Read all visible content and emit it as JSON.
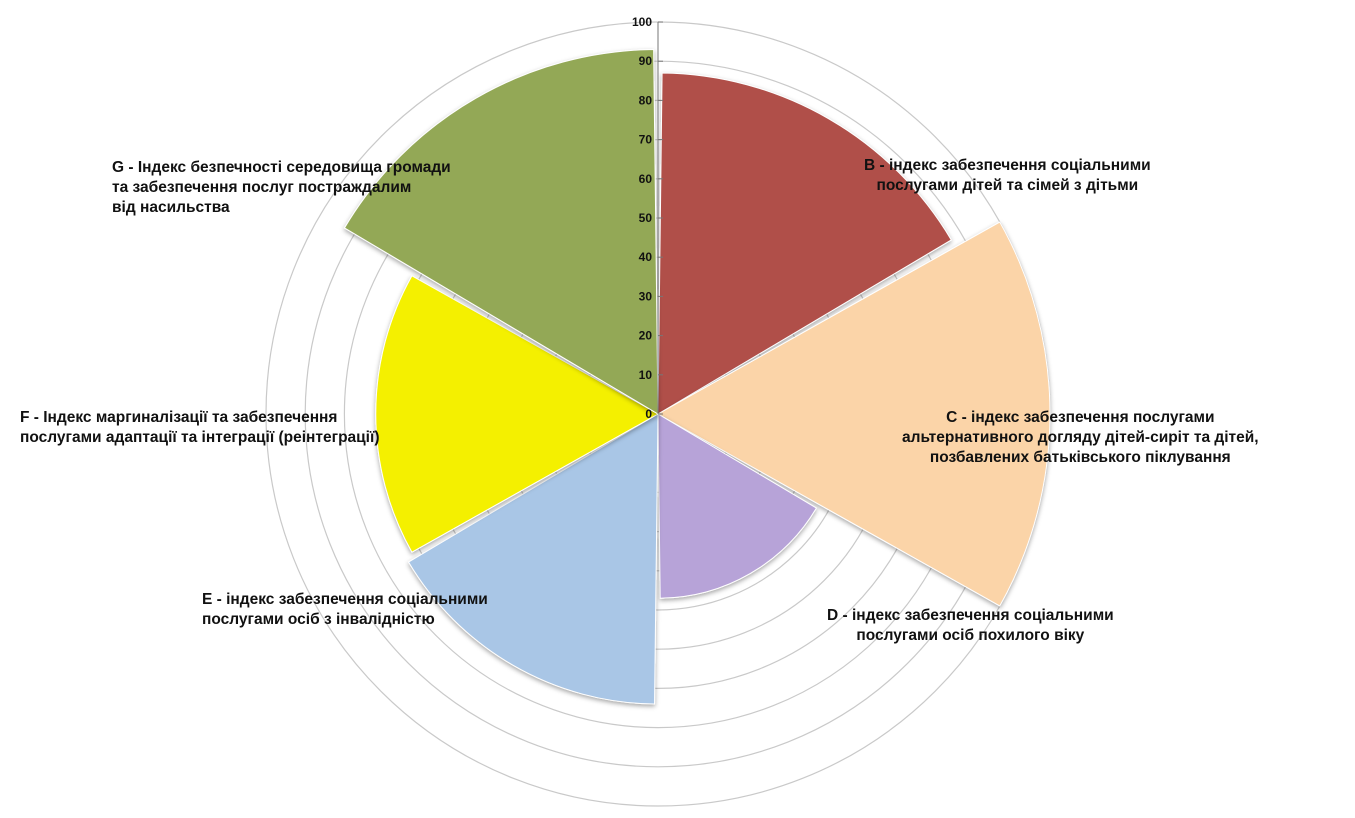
{
  "chart_data": {
    "type": "polar-area",
    "radial_range": [
      0,
      100
    ],
    "radial_ticks": [
      0,
      10,
      20,
      30,
      40,
      50,
      60,
      70,
      80,
      90,
      100
    ],
    "grid": true,
    "legend": "none",
    "categories": [
      {
        "id": "B",
        "label": "B - індекс забезпечення соціальними\nпослугами дітей та сімей з дітьми",
        "value": 87,
        "color": "#b0504a"
      },
      {
        "id": "C",
        "label": "С - індекс забезпечення послугами\nальтернативного догляду дітей-сиріт та дітей,\nпозбавлених батьківського піклування",
        "value": 100,
        "color": "#fbd4a8"
      },
      {
        "id": "D",
        "label": "D - індекс забезпечення соціальними\nпослугами осіб похилого віку",
        "value": 47,
        "color": "#b7a3d8"
      },
      {
        "id": "E",
        "label": "E - індекс забезпечення соціальними\nпослугами осіб з інвалідністю",
        "value": 74,
        "color": "#a9c6e6"
      },
      {
        "id": "F",
        "label": "F - Індекс маргиналізації та забезпечення\nпослугами адаптації та інтеграції (реінтеграції)",
        "value": 72,
        "color": "#f4f000"
      },
      {
        "id": "G",
        "label": "G - Індекс безпечності середовища громади\nта забезпечення послуг постраждалим\nвід насильства",
        "value": 93,
        "color": "#93a856"
      }
    ]
  }
}
